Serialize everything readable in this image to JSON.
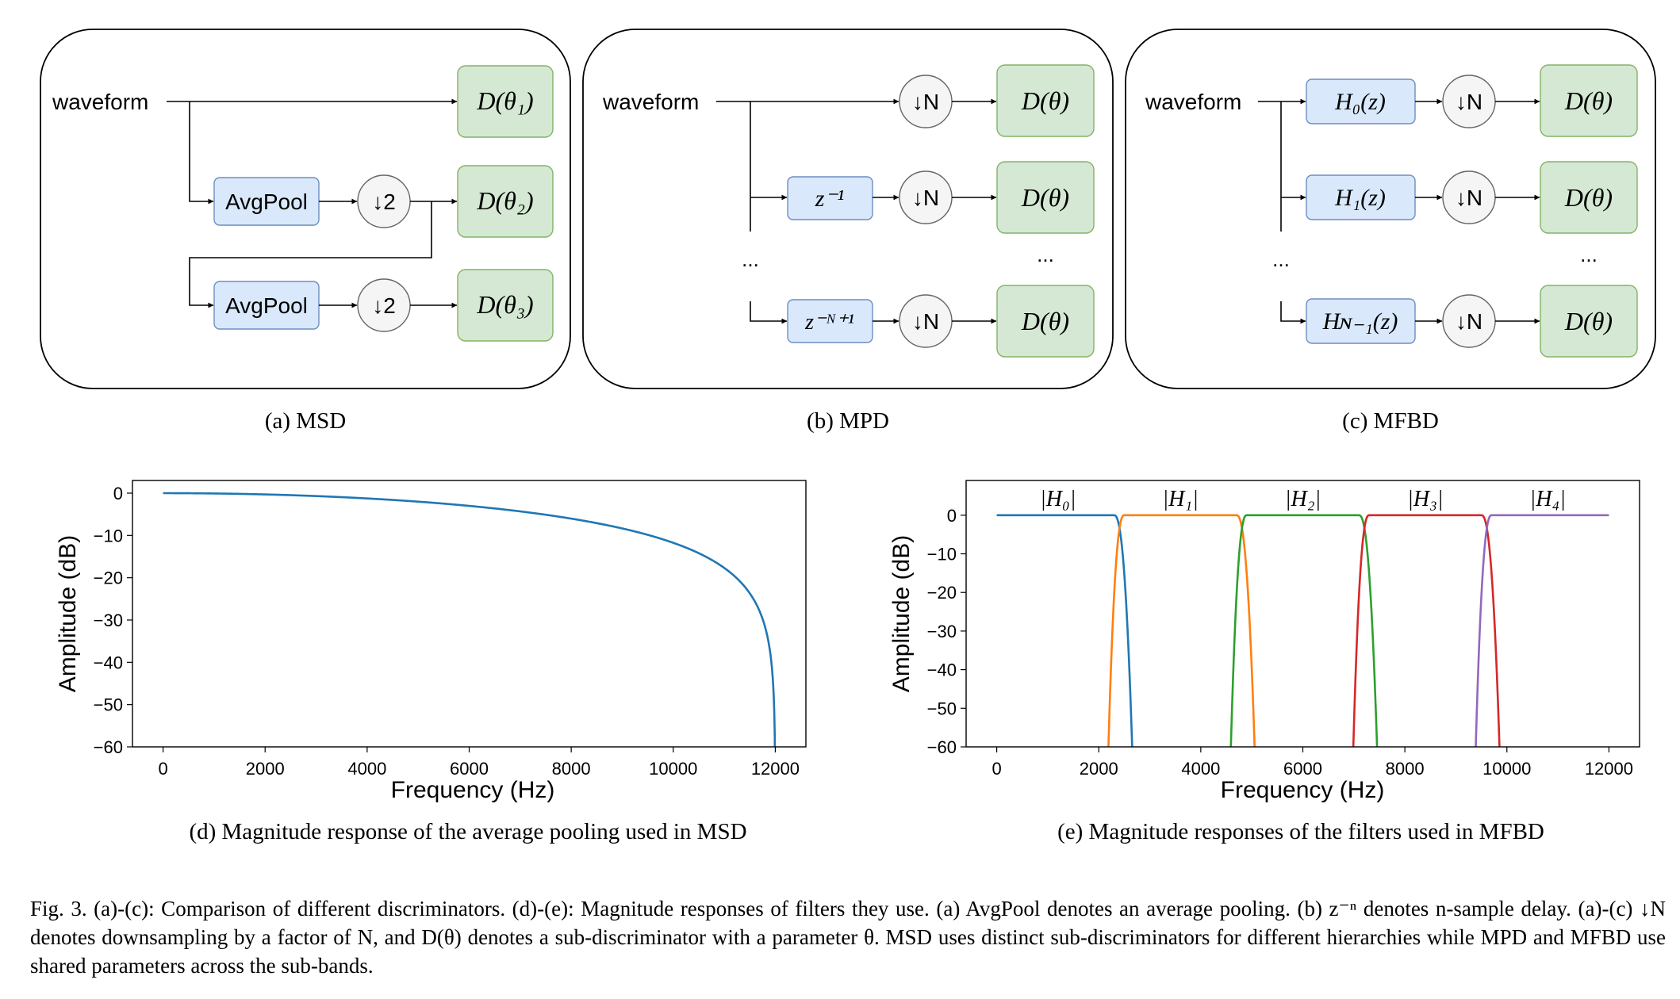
{
  "panels": {
    "a": {
      "caption": "(a) MSD",
      "input": "waveform",
      "disc": [
        "D(θ₁)",
        "D(θ₂)",
        "D(θ₃)"
      ],
      "pool": "AvgPool",
      "down": "↓2"
    },
    "b": {
      "caption": "(b) MPD",
      "input": "waveform",
      "disc": "D(θ)",
      "down": "↓N",
      "delay1": "z⁻¹",
      "delay2": "z⁻ᴺ⁺¹",
      "ellipsis": "..."
    },
    "c": {
      "caption": "(c) MFBD",
      "input": "waveform",
      "disc": "D(θ)",
      "down": "↓N",
      "filters": [
        "H₀(z)",
        "H₁(z)",
        "Hɴ₋₁(z)"
      ],
      "ellipsis": "..."
    }
  },
  "chart_data": [
    {
      "type": "line",
      "caption": "(d) Magnitude response of the average pooling used in MSD",
      "xlabel": "Frequency (Hz)",
      "ylabel": "Amplitude (dB)",
      "xlim": [
        -600,
        12600
      ],
      "ylim": [
        -60,
        3
      ],
      "xticks": [
        0,
        2000,
        4000,
        6000,
        8000,
        10000,
        12000
      ],
      "yticks": [
        0,
        -10,
        -20,
        -30,
        -40,
        -50,
        -60
      ],
      "series": [
        {
          "color": "#1f77b4",
          "formula": "20*log10(|cos(pi*f/24000)|)",
          "x_range": [
            0,
            12000
          ]
        }
      ]
    },
    {
      "type": "line",
      "caption": "(e) Magnitude responses of the filters used in MFBD",
      "xlabel": "Frequency (Hz)",
      "ylabel": "Amplitude (dB)",
      "xlim": [
        -600,
        12600
      ],
      "ylim": [
        -60,
        9
      ],
      "xticks": [
        0,
        2000,
        4000,
        6000,
        8000,
        10000,
        12000
      ],
      "yticks": [
        0,
        -10,
        -20,
        -30,
        -40,
        -50,
        -60
      ],
      "band_labels": [
        "|H₀|",
        "|H₁|",
        "|H₂|",
        "|H₃|",
        "|H₄|"
      ],
      "series": [
        {
          "color": "#1f77b4",
          "passband": [
            0,
            2300
          ],
          "stop_edge_right": 2700
        },
        {
          "color": "#ff7f0e",
          "stop_edge_left": 2150,
          "passband": [
            2500,
            4700
          ],
          "stop_edge_right": 5100
        },
        {
          "color": "#2ca02c",
          "stop_edge_left": 4550,
          "passband": [
            4900,
            7100
          ],
          "stop_edge_right": 7500
        },
        {
          "color": "#d62728",
          "stop_edge_left": 6950,
          "passband": [
            7300,
            9500
          ],
          "stop_edge_right": 9900
        },
        {
          "color": "#9467bd",
          "stop_edge_left": 9350,
          "passband": [
            9700,
            12000
          ]
        }
      ]
    }
  ],
  "figure_caption": "Fig. 3.  (a)-(c): Comparison of different discriminators. (d)-(e): Magnitude responses of filters they use. (a) AvgPool denotes an average pooling. (b) z⁻ⁿ denotes n-sample delay. (a)-(c) ↓N denotes downsampling by a factor of N, and D(θ) denotes a sub-discriminator with a parameter θ. MSD uses distinct sub-discriminators for different hierarchies while MPD and MFBD use shared parameters across the sub-bands."
}
